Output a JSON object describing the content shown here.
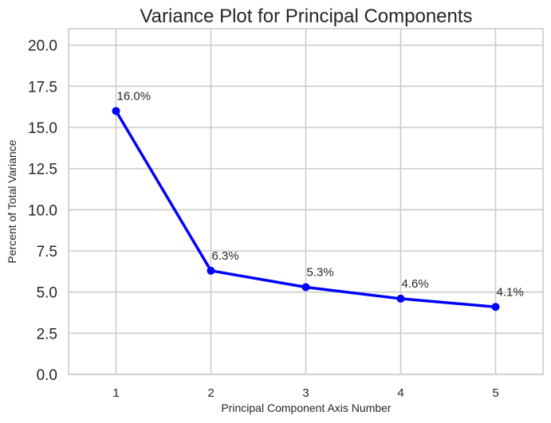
{
  "chart_data": {
    "type": "line",
    "title": "Variance Plot for Principal Components",
    "xlabel": "Principal Component Axis Number",
    "ylabel": "Percent of Total Variance",
    "x": [
      1,
      2,
      3,
      4,
      5
    ],
    "xticks": [
      "1",
      "2",
      "3",
      "4",
      "5"
    ],
    "xlim": [
      0.5,
      5.5
    ],
    "ylim": [
      0,
      21
    ],
    "yticks": [
      "0.0",
      "2.5",
      "5.0",
      "7.5",
      "10.0",
      "12.5",
      "15.0",
      "17.5",
      "20.0"
    ],
    "grid": true,
    "series": [
      {
        "values": [
          16.0,
          6.3,
          5.3,
          4.6,
          4.1
        ],
        "labels": [
          "16.0%",
          "6.3%",
          "5.3%",
          "4.6%",
          "4.1%"
        ],
        "color": "#0000ff"
      }
    ]
  }
}
